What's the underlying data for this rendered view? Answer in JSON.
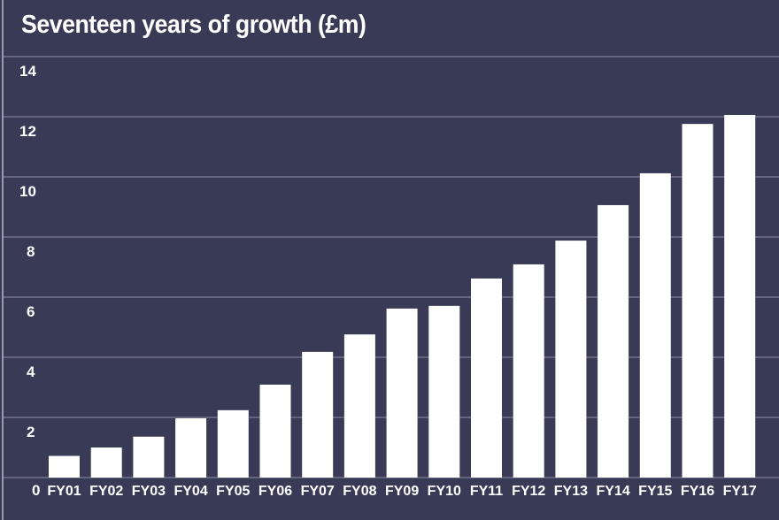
{
  "chart_data": {
    "type": "bar",
    "title": "Seventeen years of growth (£m)",
    "xlabel": "",
    "ylabel": "",
    "ylim": [
      0,
      14
    ],
    "yticks": [
      0,
      2,
      4,
      6,
      8,
      10,
      12,
      14
    ],
    "grid": true,
    "colors": {
      "background": "#393a56",
      "bar": "#ffffff",
      "grid": "#8e8ea6"
    },
    "categories": [
      "FY01",
      "FY02",
      "FY03",
      "FY04",
      "FY05",
      "FY06",
      "FY07",
      "FY08",
      "FY09",
      "FY10",
      "FY11",
      "FY12",
      "FY13",
      "FY14",
      "FY15",
      "FY16",
      "FY17"
    ],
    "values": [
      0.72,
      1.0,
      1.36,
      1.97,
      2.24,
      3.09,
      4.18,
      4.76,
      5.62,
      5.71,
      6.62,
      7.09,
      7.88,
      9.06,
      10.12,
      11.76,
      12.06
    ]
  }
}
